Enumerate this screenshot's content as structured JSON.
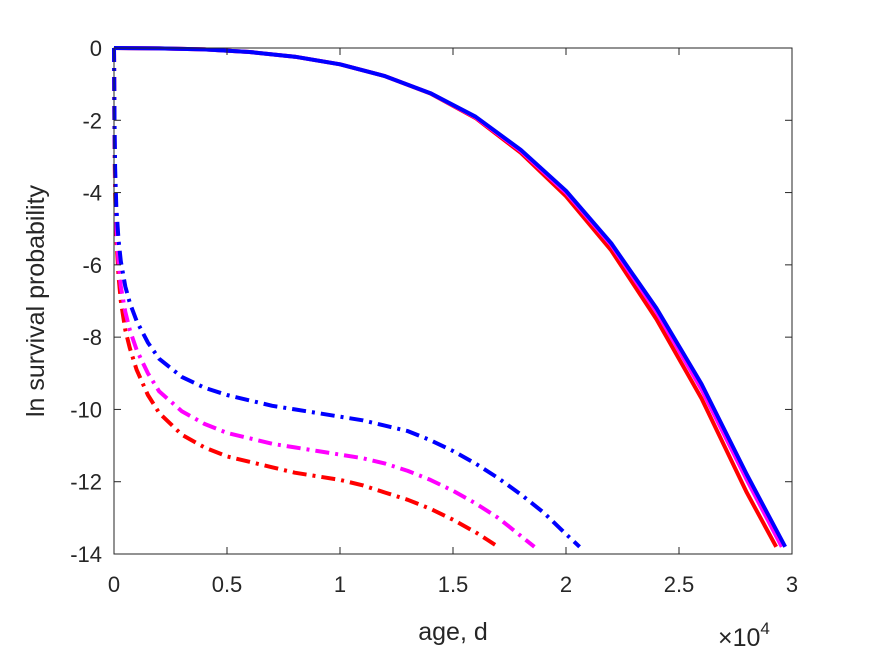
{
  "chart_data": {
    "type": "line",
    "title": "",
    "xlabel": "age, d",
    "ylabel": "ln survival probability",
    "x_multiplier_label": {
      "base": "×10",
      "exponent": "4"
    },
    "xlim": [
      0,
      3
    ],
    "ylim": [
      -14,
      0
    ],
    "x_ticks": [
      0,
      0.5,
      1,
      1.5,
      2,
      2.5,
      3
    ],
    "x_tick_labels": [
      "0",
      "0.5",
      "1",
      "1.5",
      "2",
      "2.5",
      "3"
    ],
    "y_ticks": [
      0,
      -2,
      -4,
      -6,
      -8,
      -10,
      -12,
      -14
    ],
    "y_tick_labels": [
      "0",
      "-2",
      "-4",
      "-6",
      "-8",
      "-10",
      "-12",
      "-14"
    ],
    "grid": false,
    "box": true,
    "series": [
      {
        "color": "#ff0000",
        "style": "dashdot",
        "x": [
          0,
          0.002,
          0.005,
          0.01,
          0.02,
          0.03,
          0.05,
          0.07,
          0.1,
          0.15,
          0.2,
          0.3,
          0.4,
          0.5,
          0.6,
          0.7,
          0.8,
          0.9,
          1.0,
          1.1,
          1.2,
          1.3,
          1.4,
          1.5,
          1.6,
          1.65,
          1.7
        ],
        "y": [
          0,
          -2.5,
          -4.0,
          -5.2,
          -6.3,
          -7.0,
          -7.8,
          -8.3,
          -8.9,
          -9.6,
          -10.1,
          -10.7,
          -11.05,
          -11.3,
          -11.45,
          -11.6,
          -11.75,
          -11.85,
          -11.95,
          -12.1,
          -12.3,
          -12.5,
          -12.75,
          -13.05,
          -13.4,
          -13.6,
          -13.8
        ]
      },
      {
        "color": "#ff00ff",
        "style": "dashdot",
        "x": [
          0,
          0.002,
          0.005,
          0.01,
          0.02,
          0.03,
          0.05,
          0.07,
          0.1,
          0.15,
          0.2,
          0.3,
          0.4,
          0.5,
          0.6,
          0.7,
          0.8,
          0.9,
          1.0,
          1.1,
          1.2,
          1.3,
          1.4,
          1.5,
          1.6,
          1.7,
          1.8,
          1.86
        ],
        "y": [
          0,
          -2.3,
          -3.7,
          -4.9,
          -5.9,
          -6.6,
          -7.3,
          -7.8,
          -8.35,
          -9.0,
          -9.5,
          -10.05,
          -10.4,
          -10.65,
          -10.8,
          -10.95,
          -11.05,
          -11.15,
          -11.25,
          -11.35,
          -11.5,
          -11.7,
          -11.95,
          -12.25,
          -12.6,
          -13.0,
          -13.5,
          -13.8
        ]
      },
      {
        "color": "#0000ff",
        "style": "dashdot",
        "x": [
          0,
          0.002,
          0.005,
          0.01,
          0.02,
          0.03,
          0.05,
          0.07,
          0.1,
          0.15,
          0.2,
          0.3,
          0.4,
          0.5,
          0.6,
          0.7,
          0.8,
          0.9,
          1.0,
          1.1,
          1.2,
          1.3,
          1.4,
          1.5,
          1.6,
          1.7,
          1.8,
          1.9,
          2.0,
          2.06
        ],
        "y": [
          0,
          -2.0,
          -3.3,
          -4.4,
          -5.3,
          -5.9,
          -6.6,
          -7.05,
          -7.55,
          -8.15,
          -8.6,
          -9.1,
          -9.4,
          -9.6,
          -9.75,
          -9.9,
          -10.0,
          -10.1,
          -10.2,
          -10.3,
          -10.45,
          -10.6,
          -10.85,
          -11.15,
          -11.5,
          -11.9,
          -12.35,
          -12.85,
          -13.45,
          -13.8
        ]
      },
      {
        "color": "#ff0000",
        "style": "solid",
        "x": [
          0,
          0.2,
          0.4,
          0.6,
          0.8,
          1.0,
          1.2,
          1.4,
          1.6,
          1.8,
          2.0,
          2.2,
          2.4,
          2.6,
          2.8,
          2.93
        ],
        "y": [
          0,
          -0.01,
          -0.04,
          -0.11,
          -0.24,
          -0.45,
          -0.78,
          -1.26,
          -1.94,
          -2.9,
          -4.1,
          -5.6,
          -7.5,
          -9.7,
          -12.3,
          -13.8
        ]
      },
      {
        "color": "#ff00ff",
        "style": "solid",
        "x": [
          0,
          0.2,
          0.4,
          0.6,
          0.8,
          1.0,
          1.2,
          1.4,
          1.6,
          1.8,
          2.0,
          2.2,
          2.4,
          2.6,
          2.8,
          2.955
        ],
        "y": [
          0,
          -0.01,
          -0.04,
          -0.11,
          -0.24,
          -0.45,
          -0.78,
          -1.25,
          -1.92,
          -2.85,
          -4.0,
          -5.45,
          -7.3,
          -9.45,
          -11.95,
          -13.8
        ]
      },
      {
        "color": "#0000ff",
        "style": "solid",
        "x": [
          0,
          0.2,
          0.4,
          0.6,
          0.8,
          1.0,
          1.2,
          1.4,
          1.6,
          1.8,
          2.0,
          2.2,
          2.4,
          2.6,
          2.8,
          2.97
        ],
        "y": [
          0,
          -0.01,
          -0.04,
          -0.11,
          -0.24,
          -0.45,
          -0.78,
          -1.25,
          -1.9,
          -2.82,
          -3.95,
          -5.4,
          -7.2,
          -9.3,
          -11.8,
          -13.8
        ]
      }
    ]
  }
}
